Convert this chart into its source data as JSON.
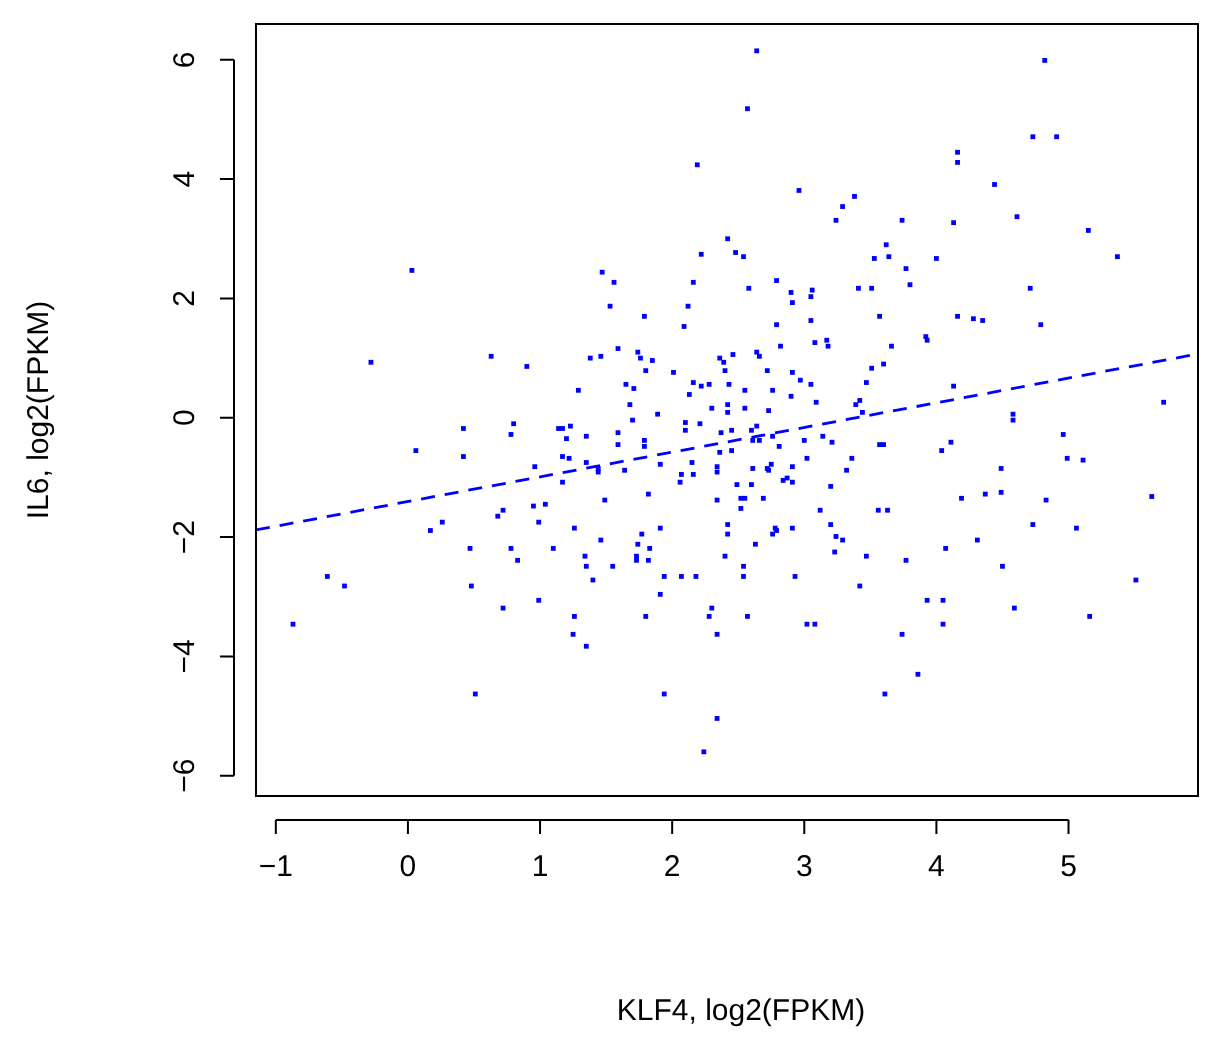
{
  "chart_data": {
    "type": "scatter",
    "xlabel": "KLF4, log2(FPKM)",
    "ylabel": "IL6, log2(FPKM)",
    "xlim": [
      -1.15,
      5.98
    ],
    "ylim": [
      -6.34,
      6.6
    ],
    "xticks": [
      -1,
      0,
      1,
      2,
      3,
      4,
      5
    ],
    "yticks": [
      -6,
      -4,
      -2,
      0,
      2,
      4,
      6
    ],
    "grid": false,
    "legend": false,
    "series": [
      {
        "type": "scatter",
        "color": "#0000ff",
        "marker": "square",
        "x": [
          2.19,
          2.42,
          2.22,
          0.03,
          1.47,
          1.56,
          2.16,
          1.53,
          2.12,
          1.79,
          2.09,
          1.59,
          1.74,
          1.76,
          1.85,
          -0.28,
          0.63,
          0.9,
          1.38,
          1.46,
          1.8,
          2.01,
          2.36,
          2.39,
          2.4,
          1.29,
          1.65,
          1.71,
          2.16,
          2.22,
          2.28,
          2.43,
          2.13,
          1.68,
          2.42,
          2.3,
          2.42,
          1.89,
          1.7,
          0.8,
          2.1,
          2.21,
          2.64,
          4.82,
          2.57,
          4.73,
          4.91,
          4.16,
          4.16,
          4.44,
          2.96,
          3.38,
          3.29,
          3.24,
          3.74,
          4.13,
          4.61,
          5.15,
          5.37,
          2.48,
          2.54,
          3.62,
          3.53,
          3.64,
          4.0,
          3.77,
          3.8,
          2.58,
          2.79,
          2.9,
          2.91,
          3.05,
          3.06,
          3.41,
          3.51,
          4.71,
          3.05,
          2.79,
          3.57,
          4.16,
          4.28,
          4.35,
          4.79,
          3.08,
          3.17,
          3.18,
          2.82,
          3.92,
          3.93,
          3.66,
          2.46,
          2.64,
          2.66,
          2.72,
          2.91,
          3.51,
          3.6,
          2.97,
          3.05,
          3.47,
          2.55,
          2.76,
          2.9,
          4.13,
          3.09,
          3.42,
          3.39,
          3.44,
          2.55,
          2.73,
          4.58,
          4.58,
          5.72,
          2.1,
          2.37,
          2.45,
          0.42,
          0.78,
          1.14,
          1.17,
          1.23,
          1.2,
          1.35,
          1.59,
          1.59,
          1.79,
          1.79,
          0.06,
          0.42,
          1.17,
          1.22,
          0.96,
          1.35,
          1.44,
          1.44,
          1.64,
          1.91,
          2.15,
          2.07,
          2.16,
          2.06,
          2.34,
          2.34,
          2.36,
          2.45,
          1.17,
          1.49,
          1.82,
          2.34,
          0.95,
          1.04,
          0.72,
          0.68,
          0.99,
          0.26,
          0.17,
          1.26,
          1.91,
          2.42,
          2.42,
          1.77,
          1.46,
          1.74,
          1.83,
          0.47,
          0.78,
          1.1,
          1.34,
          1.35,
          0.83,
          1.73,
          1.73,
          1.82,
          1.55,
          2.4,
          1.4,
          1.94,
          2.07,
          2.18,
          -0.61,
          -0.48,
          0.48,
          1.91,
          0.99,
          0.72,
          2.3,
          2.28,
          1.26,
          1.8,
          -0.87,
          1.25,
          2.34,
          1.35,
          0.51,
          1.94,
          2.34,
          2.24,
          2.6,
          2.64,
          2.61,
          2.66,
          2.76,
          2.81,
          3.0,
          3.14,
          3.21,
          3.57,
          3.6,
          4.04,
          4.11,
          4.96,
          4.99,
          5.11,
          4.49,
          2.61,
          2.72,
          2.75,
          2.73,
          2.91,
          3.02,
          3.36,
          3.32,
          2.49,
          2.6,
          2.84,
          2.87,
          2.91,
          3.2,
          2.52,
          2.55,
          2.69,
          2.52,
          3.12,
          3.56,
          3.63,
          4.19,
          4.37,
          4.49,
          4.83,
          5.63,
          2.78,
          2.79,
          2.76,
          2.91,
          3.2,
          3.24,
          3.29,
          4.73,
          5.06,
          2.63,
          3.23,
          3.47,
          3.77,
          4.07,
          4.31,
          2.54,
          2.54,
          2.93,
          4.5,
          5.51,
          3.42,
          3.93,
          4.05,
          4.59,
          2.57,
          5.16,
          3.02,
          3.08,
          4.05,
          3.74,
          3.86,
          3.61
        ],
        "values": [
          4.24,
          3.0,
          2.74,
          2.47,
          2.44,
          2.27,
          2.27,
          1.87,
          1.87,
          1.7,
          1.53,
          1.16,
          1.1,
          1.0,
          0.96,
          0.93,
          1.03,
          0.86,
          1.0,
          1.03,
          0.79,
          0.76,
          1.0,
          0.93,
          0.79,
          0.46,
          0.56,
          0.49,
          0.59,
          0.53,
          0.56,
          0.56,
          0.39,
          0.22,
          0.22,
          0.16,
          0.09,
          0.06,
          -0.04,
          -0.1,
          -0.08,
          -0.1,
          6.15,
          5.99,
          5.18,
          4.71,
          4.71,
          4.45,
          4.28,
          3.91,
          3.81,
          3.71,
          3.54,
          3.31,
          3.31,
          3.27,
          3.37,
          3.14,
          2.7,
          2.77,
          2.7,
          2.9,
          2.67,
          2.7,
          2.67,
          2.5,
          2.23,
          2.17,
          2.3,
          2.1,
          1.93,
          2.03,
          2.14,
          2.17,
          2.17,
          2.17,
          1.63,
          1.56,
          1.7,
          1.7,
          1.66,
          1.63,
          1.56,
          1.26,
          1.3,
          1.2,
          1.2,
          1.36,
          1.3,
          1.2,
          1.06,
          1.1,
          1.03,
          0.79,
          0.76,
          0.83,
          0.9,
          0.63,
          0.56,
          0.59,
          0.46,
          0.46,
          0.36,
          0.53,
          0.26,
          0.29,
          0.22,
          0.09,
          0.16,
          0.12,
          0.06,
          -0.04,
          0.26,
          -0.21,
          -0.25,
          -0.21,
          -0.18,
          -0.28,
          -0.18,
          -0.18,
          -0.14,
          -0.35,
          -0.31,
          -0.25,
          -0.45,
          -0.38,
          -0.48,
          -0.55,
          -0.65,
          -0.65,
          -0.68,
          -0.82,
          -0.75,
          -0.85,
          -0.91,
          -0.88,
          -0.78,
          -0.75,
          -0.95,
          -0.95,
          -1.08,
          -0.82,
          -0.91,
          -0.58,
          -0.55,
          -1.08,
          -1.38,
          -1.28,
          -1.38,
          -1.48,
          -1.45,
          -1.55,
          -1.65,
          -1.75,
          -1.75,
          -1.89,
          -1.85,
          -1.85,
          -1.79,
          -1.95,
          -1.95,
          -2.05,
          -2.12,
          -2.19,
          -2.19,
          -2.19,
          -2.19,
          -2.32,
          -2.49,
          -2.39,
          -2.32,
          -2.39,
          -2.39,
          -2.49,
          -2.32,
          -2.72,
          -2.66,
          -2.66,
          -2.66,
          -2.66,
          -2.82,
          -2.82,
          -2.96,
          -3.06,
          -3.19,
          -3.19,
          -3.33,
          -3.33,
          -3.33,
          -3.46,
          -3.63,
          -3.63,
          -3.83,
          -4.63,
          -4.63,
          -5.04,
          -5.6,
          -0.21,
          -0.14,
          -0.38,
          -0.38,
          -0.31,
          -0.48,
          -0.38,
          -0.31,
          -0.41,
          -0.45,
          -0.45,
          -0.55,
          -0.41,
          -0.28,
          -0.68,
          -0.71,
          -0.85,
          -0.85,
          -0.85,
          -0.78,
          -0.88,
          -0.82,
          -0.68,
          -0.68,
          -0.88,
          -1.12,
          -1.12,
          -1.05,
          -1.01,
          -1.08,
          -1.15,
          -1.35,
          -1.35,
          -1.35,
          -1.52,
          -1.55,
          -1.55,
          -1.55,
          -1.35,
          -1.28,
          -1.25,
          -1.38,
          -1.32,
          -1.85,
          -1.89,
          -1.95,
          -1.85,
          -1.79,
          -1.99,
          -2.05,
          -1.79,
          -1.85,
          -2.12,
          -2.25,
          -2.32,
          -2.39,
          -2.19,
          -2.05,
          -2.49,
          -2.66,
          -2.66,
          -2.49,
          -2.72,
          -2.82,
          -3.06,
          -3.06,
          -3.19,
          -3.33,
          -3.33,
          -3.46,
          -3.46,
          -3.46,
          -3.63,
          -4.3,
          -4.63
        ]
      },
      {
        "type": "line",
        "color": "#0000ff",
        "marker": "none",
        "line_style": "dashed",
        "x": [
          -1.15,
          5.98
        ],
        "values": [
          -1.88,
          1.07
        ]
      }
    ]
  }
}
